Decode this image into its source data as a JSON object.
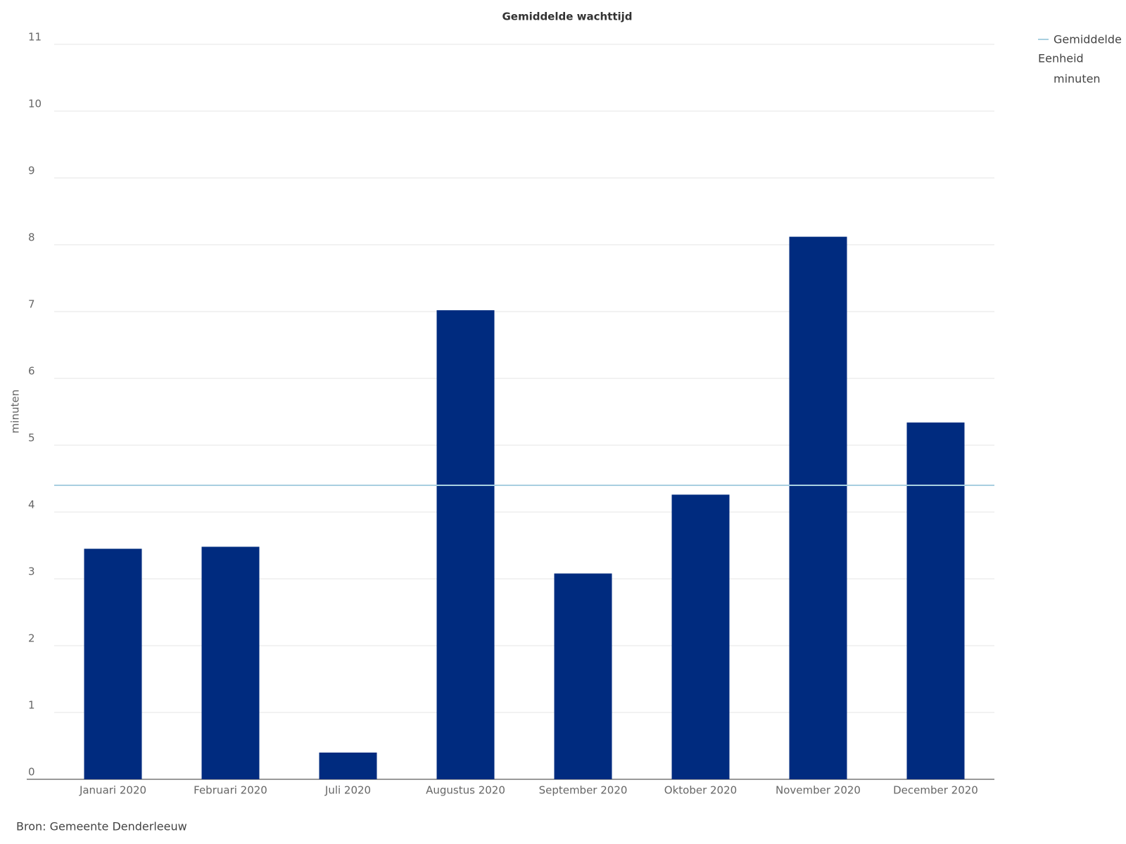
{
  "chart_data": {
    "type": "bar",
    "title": "Gemiddelde wachttijd",
    "y_label": "minuten",
    "categories": [
      "Januari 2020",
      "Februari 2020",
      "Juli 2020",
      "Augustus 2020",
      "September 2020",
      "Oktober 2020",
      "November 2020",
      "December 2020"
    ],
    "values": [
      3.45,
      3.48,
      0.4,
      7.02,
      3.08,
      4.26,
      8.12,
      5.34
    ],
    "color": "#002b7f",
    "reference_line": {
      "name": "Gemiddelde",
      "value": 4.4,
      "color": "#a8cfe0"
    },
    "unit_label": "Eenheid",
    "unit": "minuten",
    "ylim": [
      0,
      11
    ],
    "yticks": [
      0,
      1,
      2,
      3,
      4,
      5,
      6,
      7,
      8,
      9,
      10,
      11
    ],
    "grid": true,
    "source": "Bron: Gemeente Denderleeuw"
  }
}
